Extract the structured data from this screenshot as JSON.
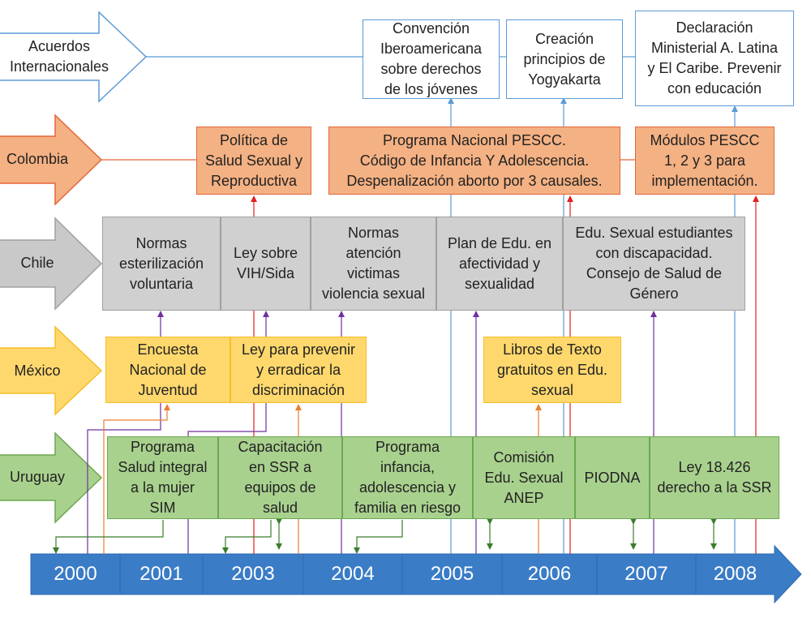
{
  "rows": {
    "intl": "Acuerdos\nInternacionales",
    "colombia": "Colombia",
    "chile": "Chile",
    "mexico": "México",
    "uruguay": "Uruguay"
  },
  "colors": {
    "intl": "#5b9bd5",
    "colombia": "#e5663b",
    "chile": "#a0a0a0",
    "mexico": "#f5bd2a",
    "uruguay": "#6aa84f",
    "timeline": "#3a7cc6"
  },
  "intl": {
    "convencion": "Convención\nIberoamericana\nsobre derechos\nde los jóvenes",
    "yogyakarta": "Creación\nprincipios de\nYogyakarta",
    "declaracion": "Declaración\nMinisterial A. Latina\ny El Caribe. Prevenir\ncon educación"
  },
  "colombia": {
    "politica": "Política de\nSalud Sexual y\nReproductiva",
    "programa": "Programa Nacional PESCC.\nCódigo de Infancia Y Adolescencia.\nDespenalización aborto por 3 causales.",
    "modulos": "Módulos PESCC\n1, 2 y 3 para\nimplementación."
  },
  "chile": {
    "esterilizacion": "Normas\nesterilización\nvoluntaria",
    "vih": "Ley sobre\nVIH/Sida",
    "violencia": "Normas\natención\nvictimas\nviolencia sexual",
    "plan": "Plan de Edu. en\nafectividad y\nsexualidad",
    "discapacidad": "Edu. Sexual estudiantes\ncon discapacidad.\nConsejo de Salud de\nGénero"
  },
  "mexico": {
    "encuesta": "Encuesta\nNacional de\nJuventud",
    "ley": "Ley para prevenir\ny erradicar la\ndiscriminación",
    "libros": "Libros de Texto\ngratuitos en Edu.\nsexual"
  },
  "uruguay": {
    "sim": "Programa\nSalud integral\na la mujer\nSIM",
    "capacitacion": "Capacitación\nen SSR a\nequipos de\nsalud",
    "infancia": "Programa\ninfancia,\nadolescencia y\nfamilia en riesgo",
    "comision": "Comisión\nEdu. Sexual\nANEP",
    "piodna": "PIODNA",
    "ley": "Ley 18.426\nderecho a la SSR"
  },
  "timeline": {
    "years": [
      "2000",
      "2001",
      "2003",
      "2004",
      "2005",
      "2006",
      "2007",
      "2008"
    ]
  }
}
